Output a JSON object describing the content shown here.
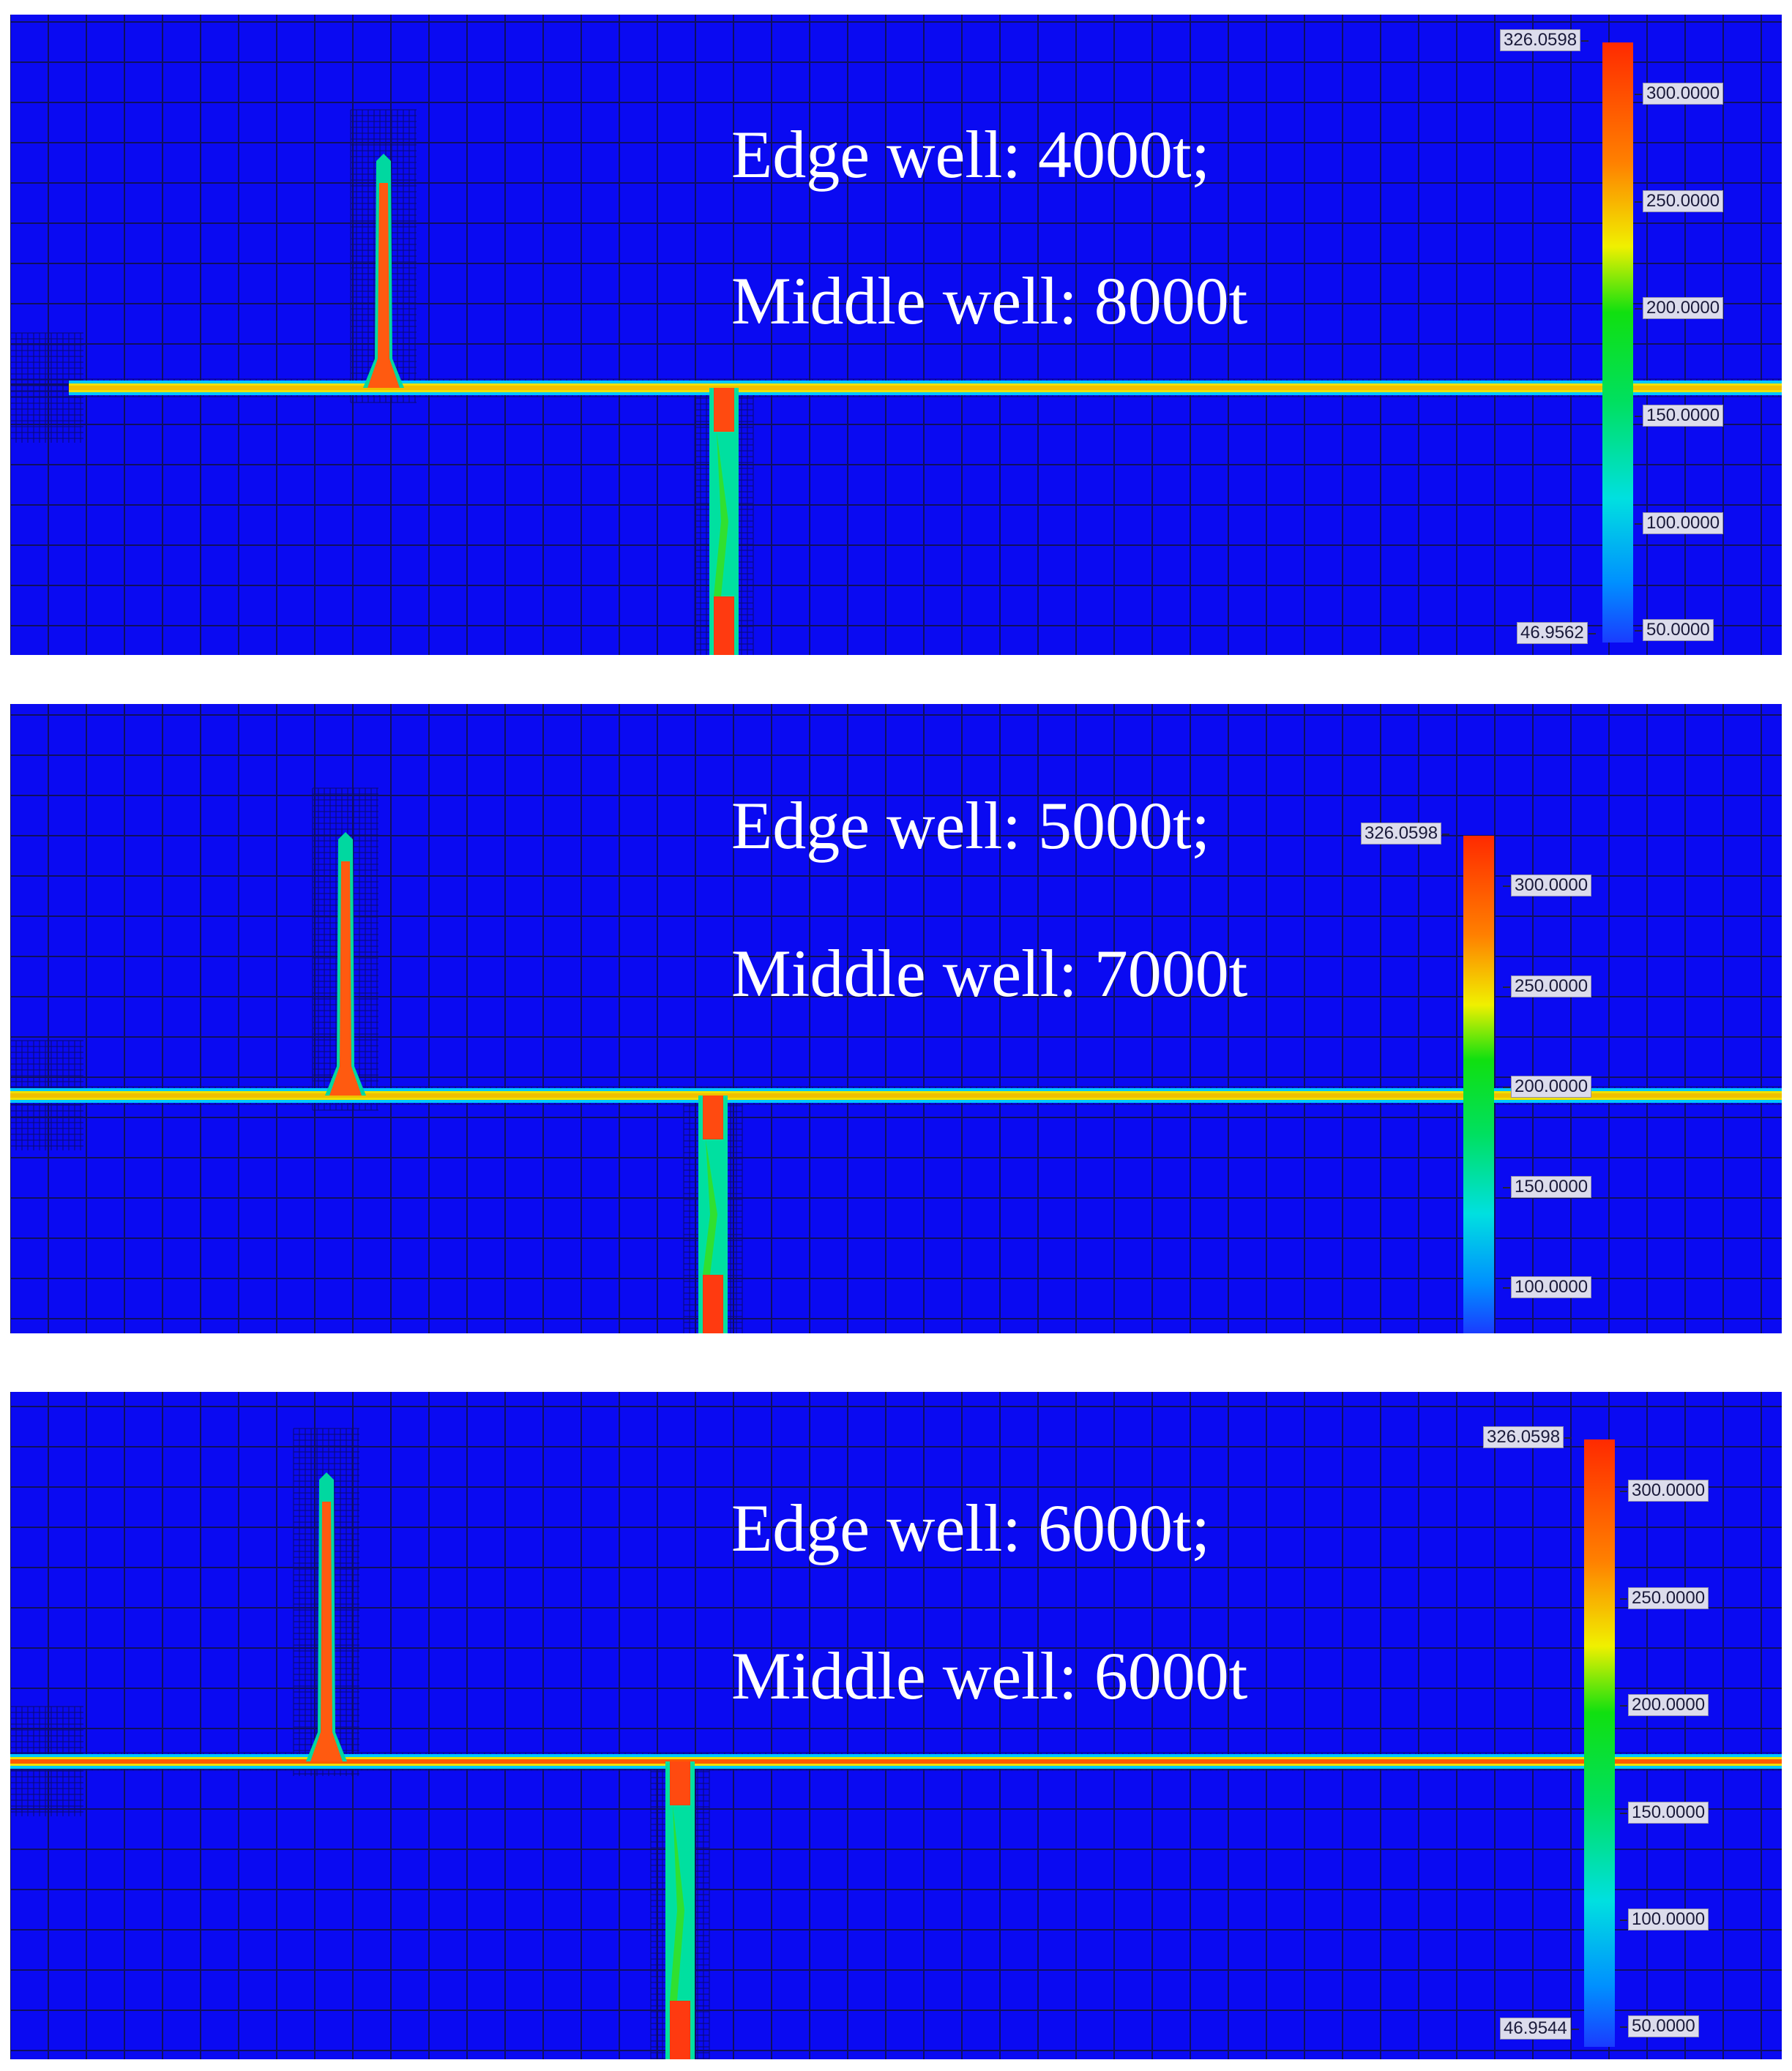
{
  "panels": [
    {
      "caption_line1": "Edge well: 4000t;",
      "caption_line2": "Middle well: 8000t",
      "colorbar": {
        "max_label": "326.0598",
        "min_label": "46.9562",
        "ticks": [
          "300.0000",
          "250.0000",
          "200.0000",
          "150.0000",
          "100.0000",
          "50.0000"
        ]
      }
    },
    {
      "caption_line1": "Edge well: 5000t;",
      "caption_line2": "Middle well: 7000t",
      "colorbar": {
        "max_label": "326.0598",
        "ticks": [
          "300.0000",
          "250.0000",
          "200.0000",
          "150.0000",
          "100.0000"
        ]
      }
    },
    {
      "caption_line1": "Edge well: 6000t;",
      "caption_line2": "Middle well: 6000t",
      "colorbar": {
        "max_label": "326.0598",
        "min_label": "46.9544",
        "ticks": [
          "300.0000",
          "250.0000",
          "200.0000",
          "150.0000",
          "100.0000",
          "50.0000"
        ]
      }
    }
  ],
  "colors": {
    "background": "#0a0af2",
    "hot": "#ff3a00",
    "warm": "#f0e000",
    "mid": "#10e010",
    "cool": "#00c8ff"
  }
}
